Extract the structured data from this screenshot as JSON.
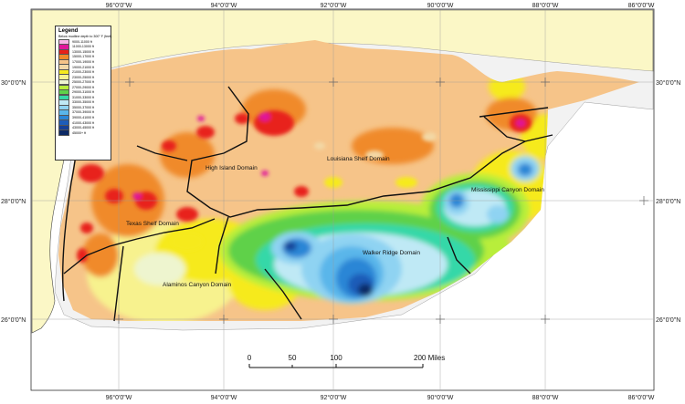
{
  "map": {
    "longitude_labels_top": [
      "96°0'0\"W",
      "94°0'0\"W",
      "92°0'0\"W",
      "90°0'0\"W",
      "88°0'0\"W",
      "86°0'0\"W"
    ],
    "longitude_labels_bottom": [
      "96°0'0\"W",
      "94°0'0\"W",
      "92°0'0\"W",
      "90°0'0\"W",
      "88°0'0\"W",
      "86°0'0\"W"
    ],
    "latitude_labels_left": [
      "30°0'0\"N",
      "28°0'0\"N",
      "26°0'0\"N"
    ],
    "latitude_labels_right": [
      "30°0'0\"N",
      "28°0'0\"N",
      "26°0'0\"N"
    ],
    "domains": [
      "High Island Domain",
      "Louisiana Shelf Domain",
      "Texas Shelf Domain",
      "Mississippi Canyon Domain",
      "Walker Ridge Domain",
      "Alaminos Canyon Domain"
    ],
    "colors": {
      "land": "#fbf7c6",
      "water": "#ffffff",
      "shallow_band": "#f2f2f2"
    }
  },
  "legend": {
    "title": "Legend",
    "subtitle": "Below mudline depth to 300° F (feet)",
    "items": [
      {
        "label": "9000-11000 ft",
        "color": "#f7b4e6"
      },
      {
        "label": "11000-13000 ft",
        "color": "#e0169a"
      },
      {
        "label": "13000-15000 ft",
        "color": "#e8201a"
      },
      {
        "label": "15000-17000 ft",
        "color": "#f08a2a"
      },
      {
        "label": "17000-19000 ft",
        "color": "#f6c489"
      },
      {
        "label": "19000-21000 ft",
        "color": "#f3d8a6"
      },
      {
        "label": "21000-23000 ft",
        "color": "#f6ea1e"
      },
      {
        "label": "23000-25000 ft",
        "color": "#f7f28e"
      },
      {
        "label": "25000-27000 ft",
        "color": "#eef5cf"
      },
      {
        "label": "27000-29000 ft",
        "color": "#b8ee3a"
      },
      {
        "label": "29000-31000 ft",
        "color": "#5fd14a"
      },
      {
        "label": "31000-33000 ft",
        "color": "#36d8a8"
      },
      {
        "label": "33000-35000 ft",
        "color": "#bfe9f5"
      },
      {
        "label": "35000-37000 ft",
        "color": "#8fd3f2"
      },
      {
        "label": "37000-39000 ft",
        "color": "#5ab6ea"
      },
      {
        "label": "39000-41000 ft",
        "color": "#2c86d6"
      },
      {
        "label": "41000-43000 ft",
        "color": "#1e5cb8"
      },
      {
        "label": "43000-45000 ft",
        "color": "#173f95"
      },
      {
        "label": "45000+ ft",
        "color": "#0d2a66"
      }
    ]
  },
  "scale_bar": {
    "ticks": [
      "0",
      "50",
      "100",
      "200 Miles"
    ]
  }
}
